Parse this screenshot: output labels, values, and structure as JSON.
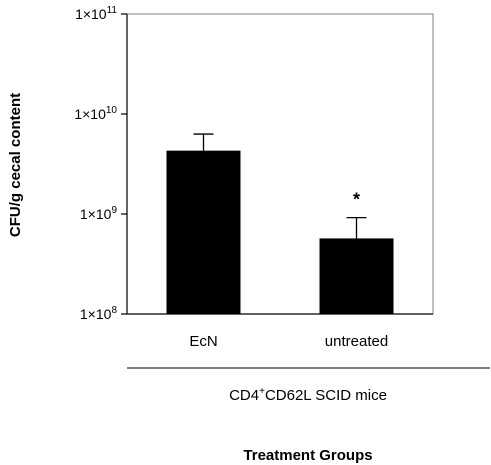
{
  "chart_data": {
    "type": "bar",
    "title": "",
    "xlabel": "Treatment Groups",
    "ylabel": "CFU/g cecal content",
    "group_label": "CD4",
    "group_label_sup": "+",
    "group_label_rest": "CD62L SCID mice",
    "categories": [
      "EcN",
      "untreated"
    ],
    "values": [
      4300000000,
      570000000
    ],
    "errors_upper": [
      6300000000,
      920000000
    ],
    "yscale": "log",
    "ylim": [
      100000000,
      100000000000
    ],
    "y_ticks": [
      {
        "value": 100000000,
        "base": "1×10",
        "exp": "8"
      },
      {
        "value": 1000000000,
        "base": "1×10",
        "exp": "9"
      },
      {
        "value": 10000000000,
        "base": "1×10",
        "exp": "10"
      },
      {
        "value": 100000000000,
        "base": "1×10",
        "exp": "11"
      }
    ],
    "annotations": [
      {
        "category": "untreated",
        "text": "*"
      }
    ],
    "bar_color": "#000000",
    "grid": false
  }
}
